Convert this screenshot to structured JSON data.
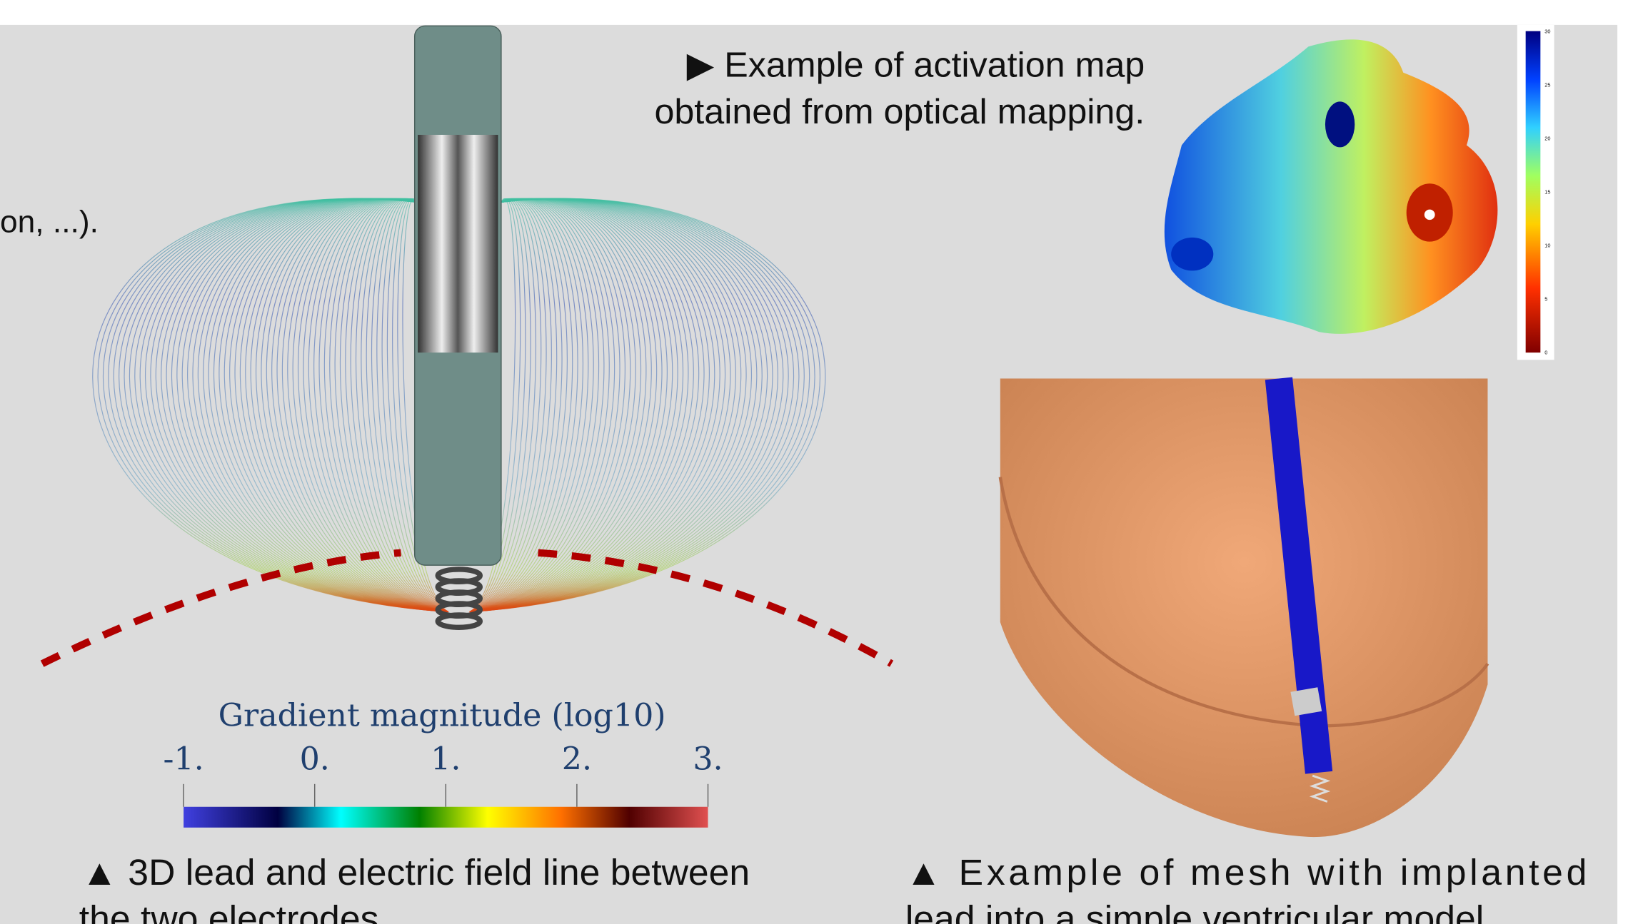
{
  "header_caption": {
    "lines": [
      "▶ Example of activation map",
      "obtained from optical mapping."
    ]
  },
  "cut_text": "on, ...).",
  "activation_colorbar": {
    "ticks": [
      "30",
      "25",
      "20",
      "15",
      "10",
      "5",
      "0"
    ]
  },
  "field_figure": {
    "colorbar_title": "Gradient magnitude (log10)",
    "colorbar_ticks": [
      "-1.",
      "0.",
      "1.",
      "2.",
      "3."
    ],
    "caption": [
      "▲ 3D lead and electric field line between",
      "the two electrodes."
    ]
  },
  "mesh_figure": {
    "caption": [
      "▲ Example of  mesh with implanted",
      "lead into a simple ventricular model."
    ]
  }
}
